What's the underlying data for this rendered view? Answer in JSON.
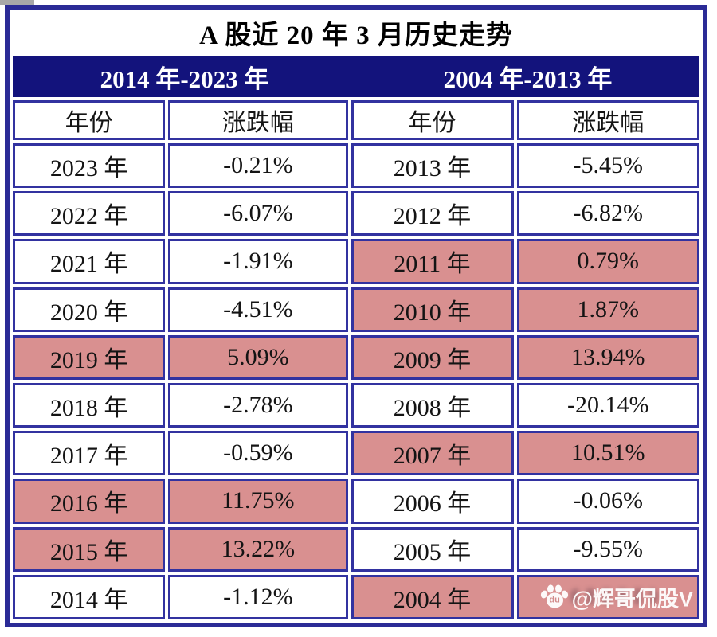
{
  "title": "A 股近 20 年 3 月历史走势",
  "groups": {
    "left": "2014 年-2023 年",
    "right": "2004 年-2013 年"
  },
  "headers": [
    "年份",
    "涨跌幅",
    "年份",
    "涨跌幅"
  ],
  "rows": [
    {
      "left_year": "2023 年",
      "left_value": "-0.21%",
      "left_highlight": false,
      "right_year": "2013 年",
      "right_value": "-5.45%",
      "right_highlight": false
    },
    {
      "left_year": "2022 年",
      "left_value": "-6.07%",
      "left_highlight": false,
      "right_year": "2012 年",
      "right_value": "-6.82%",
      "right_highlight": false
    },
    {
      "left_year": "2021 年",
      "left_value": "-1.91%",
      "left_highlight": false,
      "right_year": "2011 年",
      "right_value": "0.79%",
      "right_highlight": true
    },
    {
      "left_year": "2020 年",
      "left_value": "-4.51%",
      "left_highlight": false,
      "right_year": "2010 年",
      "right_value": "1.87%",
      "right_highlight": true
    },
    {
      "left_year": "2019 年",
      "left_value": "5.09%",
      "left_highlight": true,
      "right_year": "2009 年",
      "right_value": "13.94%",
      "right_highlight": true
    },
    {
      "left_year": "2018 年",
      "left_value": "-2.78%",
      "left_highlight": false,
      "right_year": "2008 年",
      "right_value": "-20.14%",
      "right_highlight": false
    },
    {
      "left_year": "2017 年",
      "left_value": "-0.59%",
      "left_highlight": false,
      "right_year": "2007 年",
      "right_value": "10.51%",
      "right_highlight": true
    },
    {
      "left_year": "2016 年",
      "left_value": "11.75%",
      "left_highlight": true,
      "right_year": "2006 年",
      "right_value": "-0.06%",
      "right_highlight": false
    },
    {
      "left_year": "2015 年",
      "left_value": "13.22%",
      "left_highlight": true,
      "right_year": "2005 年",
      "right_value": "-9.55%",
      "right_highlight": false
    },
    {
      "left_year": "2014 年",
      "left_value": "-1.12%",
      "left_highlight": false,
      "right_year": "2004 年",
      "right_value": "",
      "right_highlight": true
    }
  ],
  "watermark": {
    "handle": "@辉哥侃股V",
    "icon": "baidu-paw-icon",
    "icon_label": "du"
  },
  "colors": {
    "outer_border": "#2b2b96",
    "cell_border": "#3232a0",
    "band_navy": "#13137c",
    "highlight_pink": "#d99090",
    "text": "#141414"
  },
  "chart_data": {
    "type": "table",
    "title": "A 股近 20 年 3 月历史走势",
    "column_groups": [
      "2014 年-2023 年",
      "2004 年-2013 年"
    ],
    "columns": [
      "年份",
      "涨跌幅",
      "年份",
      "涨跌幅"
    ],
    "series": [
      {
        "name": "2014 年-2023 年",
        "years": [
          "2023",
          "2022",
          "2021",
          "2020",
          "2019",
          "2018",
          "2017",
          "2016",
          "2015",
          "2014"
        ],
        "values_pct": [
          -0.21,
          -6.07,
          -1.91,
          -4.51,
          5.09,
          -2.78,
          -0.59,
          11.75,
          13.22,
          -1.12
        ],
        "highlighted_years": [
          "2019",
          "2016",
          "2015"
        ]
      },
      {
        "name": "2004 年-2013 年",
        "years": [
          "2013",
          "2012",
          "2011",
          "2010",
          "2009",
          "2008",
          "2007",
          "2006",
          "2005",
          "2004"
        ],
        "values_pct": [
          -5.45,
          -6.82,
          0.79,
          1.87,
          13.94,
          -20.14,
          10.51,
          -0.06,
          -9.55,
          null
        ],
        "highlighted_years": [
          "2011",
          "2010",
          "2009",
          "2007",
          "2004"
        ]
      }
    ]
  }
}
